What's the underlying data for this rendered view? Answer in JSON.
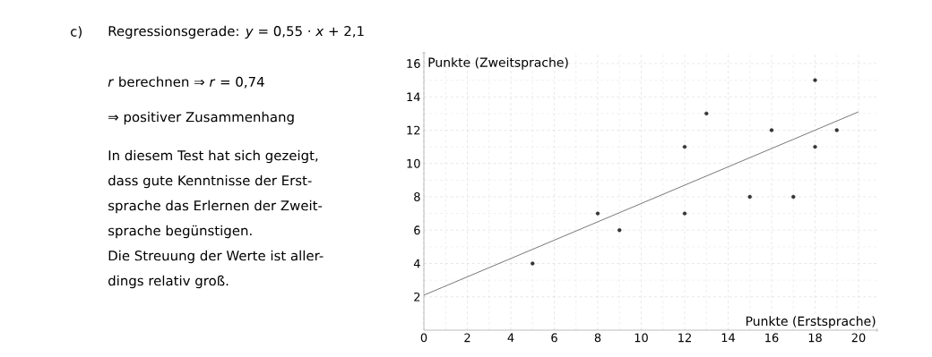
{
  "chart_data": {
    "type": "scatter",
    "xlabel": "Punkte (Erstsprache)",
    "ylabel": "Punkte (Zweitsprache)",
    "xlim": [
      0,
      20.9
    ],
    "ylim": [
      0,
      16.7
    ],
    "xticks": [
      0,
      2,
      4,
      6,
      8,
      10,
      12,
      14,
      16,
      18,
      20
    ],
    "yticks": [
      2,
      4,
      6,
      8,
      10,
      12,
      14,
      16
    ],
    "grid": true,
    "series": [
      {
        "marker": "circle",
        "color": "#333333",
        "x": [
          5,
          8,
          9,
          12,
          12,
          13,
          15,
          16,
          17,
          18,
          18,
          19
        ],
        "values": [
          4,
          7,
          6,
          11,
          7,
          13,
          8,
          12,
          8,
          15,
          11,
          12
        ]
      },
      {
        "type": "line",
        "marker": "none",
        "color": "#777777",
        "x": [
          0,
          20
        ],
        "values": [
          2.1,
          13.1
        ]
      }
    ],
    "annotations": [
      "c)",
      "Regressionsgerade: *y* = 0,55 · *x* + 2,1",
      "*r* berechnen ⇒ *r* = 0,74",
      "⇒   positiver Zusammenhang",
      "In diesem Test hat sich gezeigt,",
      "dass gute Kenntnisse der Erst-",
      "sprache das Erlernen der Zweit-",
      "sprache begünstigen.",
      "Die Streuung der Werte ist aller-",
      "dings relativ groß."
    ]
  }
}
